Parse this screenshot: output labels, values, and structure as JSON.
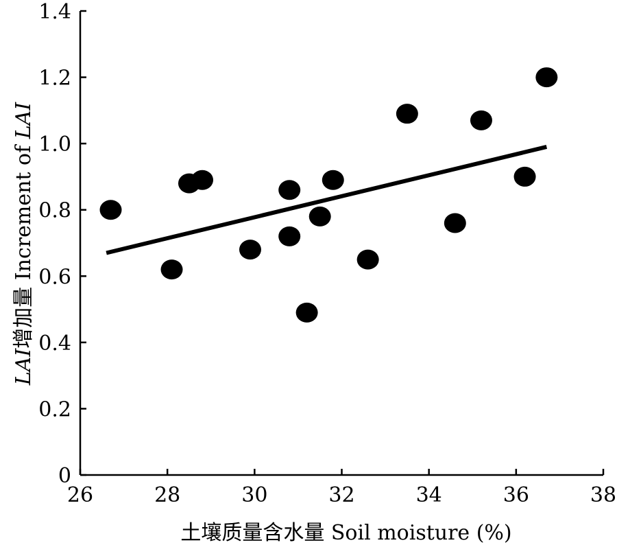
{
  "chart_data": {
    "type": "scatter",
    "xlabel": "土壤质量含水量 Soil moisture (%)",
    "ylabel_prefix": "LAI",
    "ylabel_middle": "增加量 Increment of ",
    "ylabel_suffix": "LAI",
    "xlim": [
      26,
      38
    ],
    "ylim": [
      0,
      1.4
    ],
    "x_ticks": [
      26,
      28,
      30,
      32,
      34,
      36,
      38
    ],
    "y_ticks": [
      0,
      0.2,
      0.4,
      0.6,
      0.8,
      1.0,
      1.2,
      1.4
    ],
    "x_tick_labels": [
      "26",
      "28",
      "30",
      "32",
      "34",
      "36",
      "38"
    ],
    "y_tick_labels": [
      "0",
      "0.2",
      "0.4",
      "0.6",
      "0.8",
      "1.0",
      "1.2",
      "1.4"
    ],
    "grid": false,
    "points": [
      {
        "x": 26.7,
        "y": 0.8
      },
      {
        "x": 28.1,
        "y": 0.62
      },
      {
        "x": 28.5,
        "y": 0.88
      },
      {
        "x": 28.8,
        "y": 0.89
      },
      {
        "x": 29.9,
        "y": 0.68
      },
      {
        "x": 30.8,
        "y": 0.86
      },
      {
        "x": 30.8,
        "y": 0.72
      },
      {
        "x": 31.2,
        "y": 0.49
      },
      {
        "x": 31.5,
        "y": 0.78
      },
      {
        "x": 31.8,
        "y": 0.89
      },
      {
        "x": 32.6,
        "y": 0.65
      },
      {
        "x": 33.5,
        "y": 1.09
      },
      {
        "x": 34.6,
        "y": 0.76
      },
      {
        "x": 35.2,
        "y": 1.07
      },
      {
        "x": 36.2,
        "y": 0.9
      },
      {
        "x": 36.7,
        "y": 1.2
      }
    ],
    "trendline": {
      "x": [
        26.6,
        36.7
      ],
      "y": [
        0.67,
        0.99
      ]
    }
  }
}
